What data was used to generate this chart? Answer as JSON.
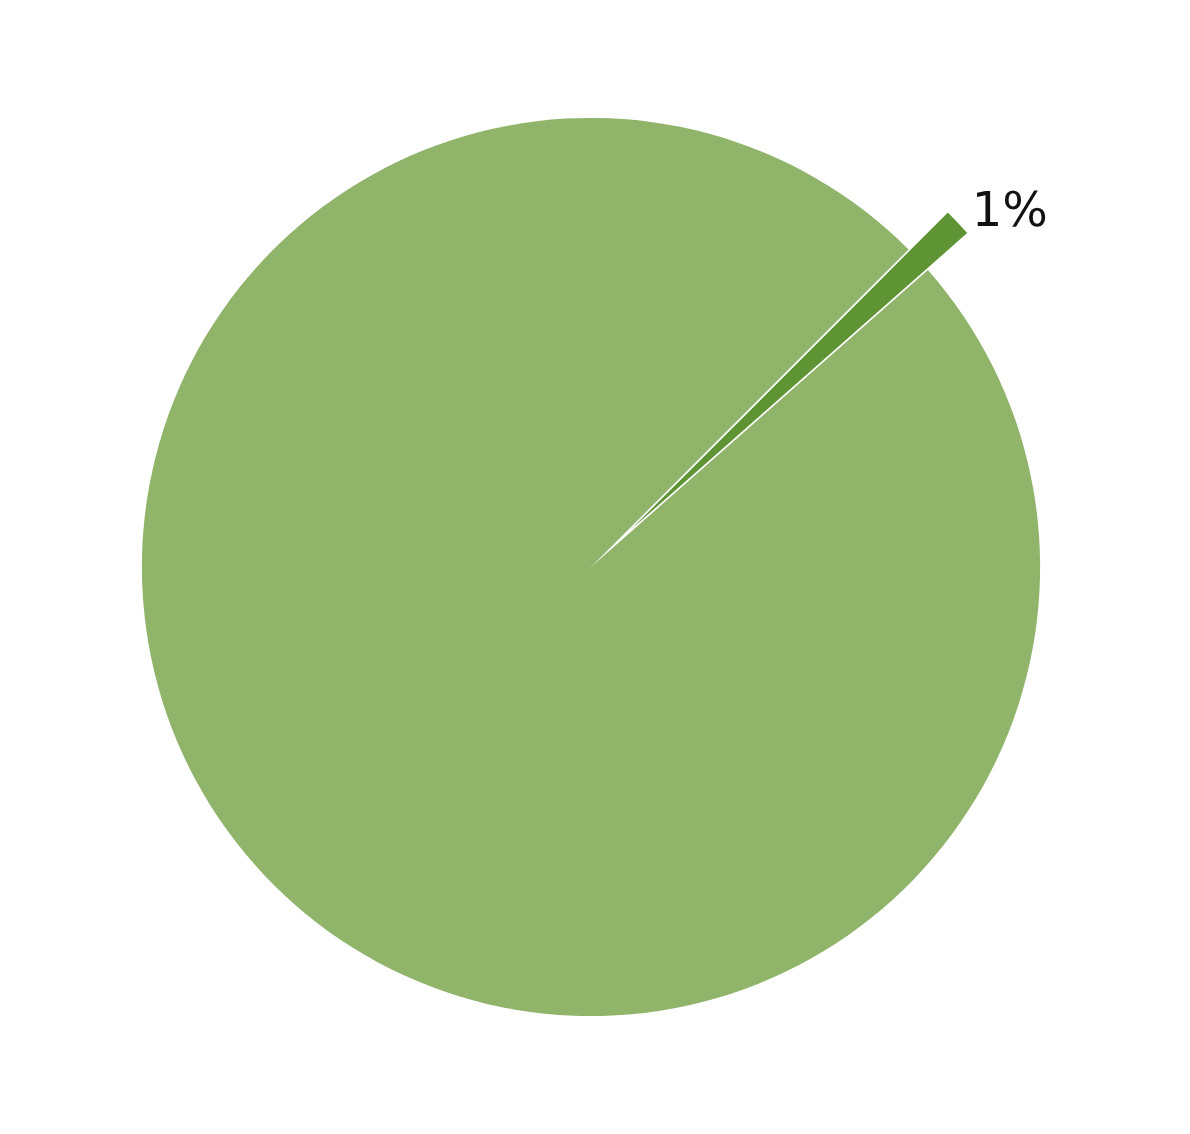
{
  "chart_data": {
    "type": "pie",
    "categories": [
      null,
      null
    ],
    "values": [
      1,
      99
    ],
    "colors": [
      "#5f9434",
      "#8fb46a"
    ],
    "value_labels": [
      "1%",
      null
    ],
    "legend": false
  }
}
